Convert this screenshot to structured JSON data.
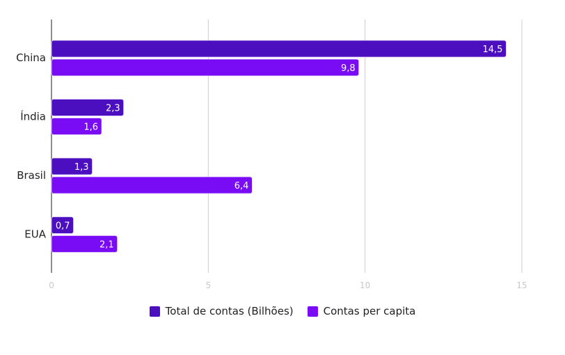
{
  "chart_data": {
    "type": "bar",
    "orientation": "horizontal",
    "categories": [
      "China",
      "Índia",
      "Brasil",
      "EUA"
    ],
    "series": [
      {
        "name": "Total de contas (Bilhões)",
        "values": [
          14.5,
          2.3,
          1.3,
          0.7
        ],
        "labels": [
          "14,5",
          "2,3",
          "1,3",
          "0,7"
        ],
        "color": "#4b0fbf"
      },
      {
        "name": "Contas per capita",
        "values": [
          9.8,
          1.6,
          6.4,
          2.1
        ],
        "labels": [
          "9,8",
          "1,6",
          "6,4",
          "2,1"
        ],
        "color": "#7a0cf5"
      }
    ],
    "xlim": [
      0,
      15
    ],
    "x_ticks": [
      0,
      5,
      10,
      15
    ],
    "x_tick_labels": [
      "0",
      "5",
      "10",
      "15"
    ],
    "grid": true,
    "legend_position": "bottom"
  }
}
